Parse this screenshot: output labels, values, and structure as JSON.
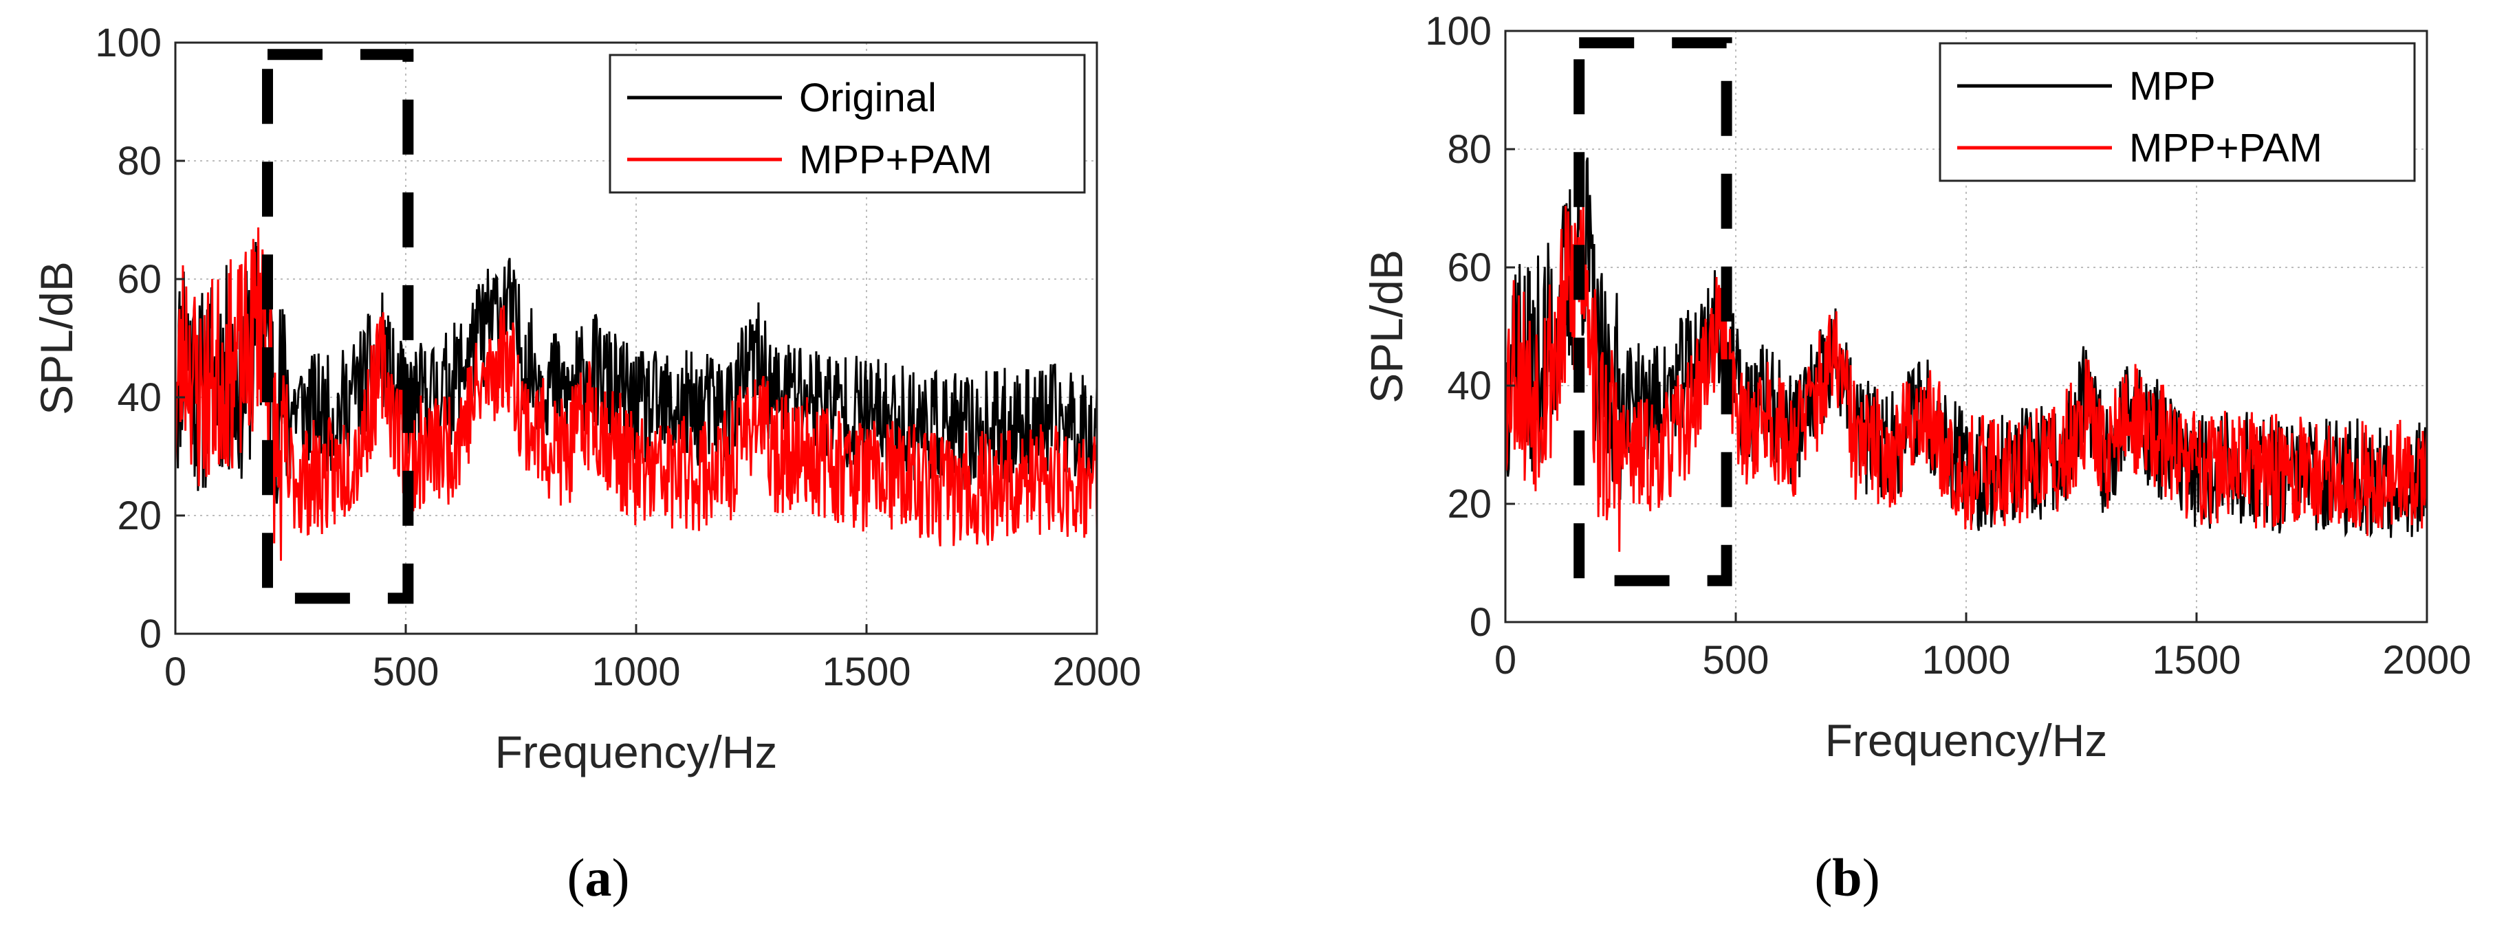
{
  "figure": {
    "panels": [
      {
        "caption_open": "(",
        "caption_letter": "a",
        "caption_close": ")"
      },
      {
        "caption_open": "(",
        "caption_letter": "b",
        "caption_close": ")"
      }
    ]
  },
  "chart_data": [
    {
      "type": "line",
      "xlabel": "Frequency/Hz",
      "ylabel": "SPL/dB",
      "xlim": [
        0,
        2000
      ],
      "ylim": [
        0,
        100
      ],
      "xticks": [
        0,
        500,
        1000,
        1500,
        2000
      ],
      "yticks": [
        0,
        20,
        40,
        60,
        80,
        100
      ],
      "grid": true,
      "legend_position": "top-right",
      "series": [
        {
          "name": "Original",
          "color": "#000000",
          "x": [
            0,
            20,
            50,
            100,
            150,
            190,
            220,
            280,
            350,
            400,
            450,
            480,
            520,
            600,
            650,
            700,
            720,
            760,
            850,
            900,
            1000,
            1100,
            1200,
            1260,
            1300,
            1350,
            1500,
            1600,
            1700,
            1800,
            1900,
            2000
          ],
          "y": [
            40,
            52,
            40,
            45,
            43,
            54,
            40,
            38,
            37,
            42,
            48,
            40,
            39,
            42,
            49,
            55,
            56,
            46,
            40,
            45,
            38,
            38,
            38,
            47,
            40,
            41,
            37,
            36,
            34,
            35,
            36,
            35
          ]
        },
        {
          "name": "MPP+PAM",
          "color": "#ff0000",
          "x": [
            0,
            20,
            50,
            100,
            150,
            190,
            220,
            280,
            350,
            400,
            450,
            480,
            520,
            600,
            650,
            700,
            720,
            760,
            850,
            900,
            1000,
            1100,
            1200,
            1260,
            1300,
            1350,
            1500,
            1600,
            1700,
            1800,
            1900,
            2000
          ],
          "y": [
            38,
            50,
            40,
            45,
            46,
            57,
            28,
            26,
            27,
            32,
            46,
            35,
            30,
            32,
            40,
            46,
            48,
            36,
            30,
            38,
            27,
            27,
            28,
            38,
            30,
            31,
            27,
            26,
            24,
            25,
            26,
            25
          ]
        }
      ],
      "annotation_box": {
        "x": [
          200,
          505
        ],
        "y": [
          6,
          98
        ]
      }
    },
    {
      "type": "line",
      "xlabel": "Frequency/Hz",
      "ylabel": "SPL/dB",
      "xlim": [
        0,
        2000
      ],
      "ylim": [
        0,
        100
      ],
      "xticks": [
        0,
        500,
        1000,
        1500,
        2000
      ],
      "yticks": [
        0,
        20,
        40,
        60,
        80,
        100
      ],
      "grid": true,
      "legend_position": "top-right",
      "series": [
        {
          "name": "MPP",
          "color": "#000000",
          "x": [
            0,
            20,
            50,
            100,
            150,
            175,
            200,
            250,
            300,
            350,
            400,
            450,
            470,
            520,
            560,
            620,
            700,
            720,
            760,
            850,
            900,
            1000,
            1100,
            1200,
            1260,
            1300,
            1350,
            1500,
            1600,
            1700,
            1800,
            1900,
            2000
          ],
          "y": [
            38,
            50,
            42,
            48,
            60,
            66,
            42,
            38,
            37,
            38,
            44,
            50,
            50,
            35,
            38,
            32,
            42,
            44,
            32,
            30,
            38,
            25,
            26,
            27,
            38,
            27,
            36,
            25,
            26,
            24,
            25,
            24,
            24
          ]
        },
        {
          "name": "MPP+PAM",
          "color": "#ff0000",
          "x": [
            0,
            20,
            50,
            100,
            150,
            175,
            200,
            250,
            300,
            350,
            400,
            450,
            470,
            520,
            560,
            620,
            700,
            720,
            760,
            850,
            900,
            1000,
            1100,
            1200,
            1260,
            1300,
            1350,
            1500,
            1600,
            1700,
            1800,
            1900,
            2000
          ],
          "y": [
            40,
            46,
            38,
            44,
            58,
            64,
            33,
            29,
            28,
            29,
            35,
            48,
            49,
            31,
            36,
            30,
            42,
            45,
            30,
            29,
            36,
            25,
            26,
            27,
            36,
            28,
            35,
            26,
            26,
            25,
            25,
            24,
            25
          ]
        }
      ],
      "annotation_box": {
        "x": [
          160,
          480
        ],
        "y": [
          7,
          98
        ]
      }
    }
  ]
}
